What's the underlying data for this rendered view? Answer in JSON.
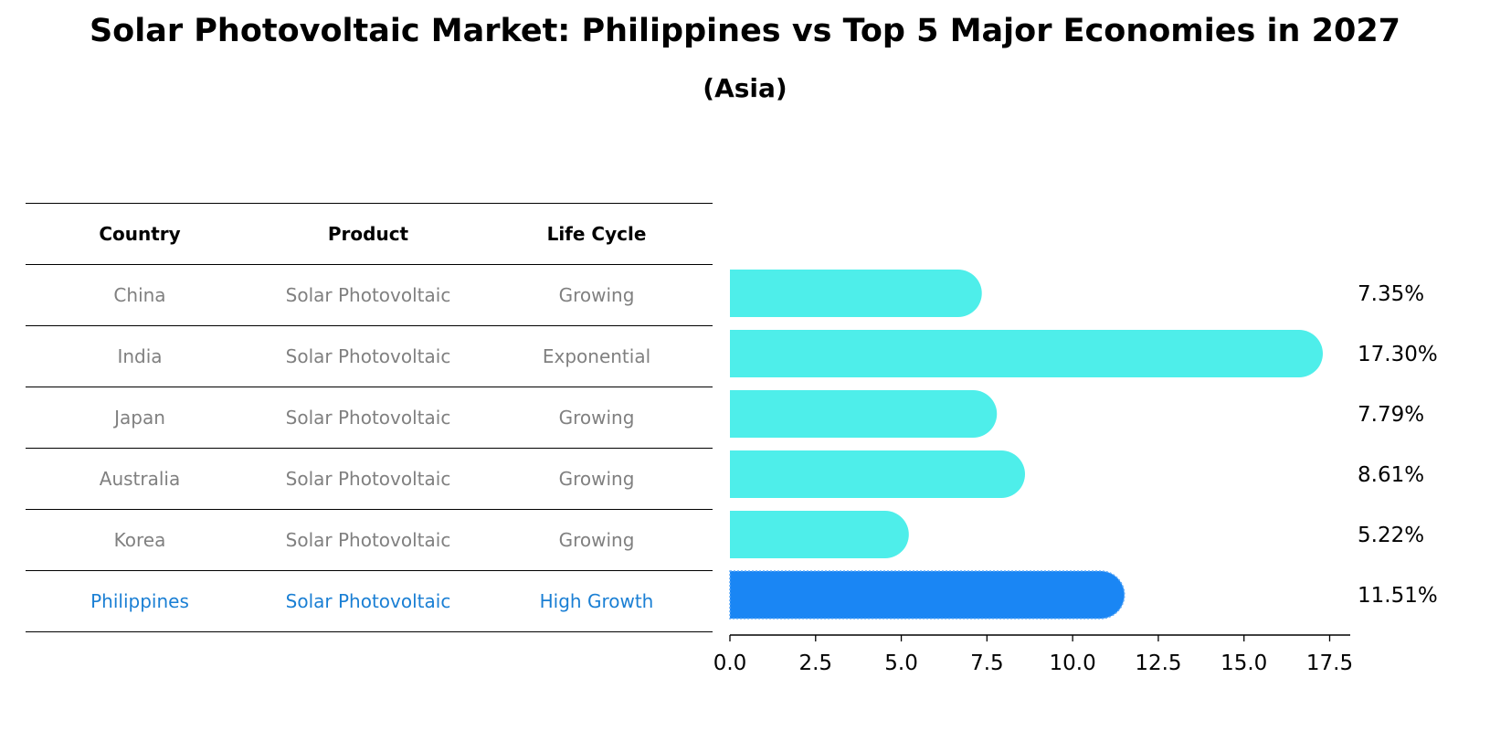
{
  "title": "Solar Photovoltaic Market: Philippines vs Top 5 Major Economies in 2027",
  "subtitle": "(Asia)",
  "table": {
    "headers": [
      "Country",
      "Product",
      "Life Cycle"
    ],
    "rows": [
      {
        "country": "China",
        "product": "Solar Photovoltaic",
        "life_cycle": "Growing"
      },
      {
        "country": "India",
        "product": "Solar Photovoltaic",
        "life_cycle": "Exponential"
      },
      {
        "country": "Japan",
        "product": "Solar Photovoltaic",
        "life_cycle": "Growing"
      },
      {
        "country": "Australia",
        "product": "Solar Photovoltaic",
        "life_cycle": "Growing"
      },
      {
        "country": "Korea",
        "product": "Solar Photovoltaic",
        "life_cycle": "Growing"
      },
      {
        "country": "Philippines",
        "product": "Solar Photovoltaic",
        "life_cycle": "High Growth"
      }
    ]
  },
  "colors": {
    "bar": "#4eeeea",
    "highlight_bar": "#1a86f4",
    "highlight_text": "#1a7fd4",
    "muted_text": "#808080"
  },
  "chart_data": {
    "type": "bar",
    "orientation": "horizontal",
    "categories": [
      "China",
      "India",
      "Japan",
      "Australia",
      "Korea",
      "Philippines"
    ],
    "values": [
      7.35,
      17.3,
      7.79,
      8.61,
      5.22,
      11.51
    ],
    "value_labels": [
      "7.35%",
      "17.30%",
      "7.79%",
      "8.61%",
      "5.22%",
      "11.51%"
    ],
    "highlight": "Philippines",
    "xlim": [
      0,
      18.1
    ],
    "xticks": [
      0.0,
      2.5,
      5.0,
      7.5,
      10.0,
      12.5,
      15.0,
      17.5
    ],
    "xtick_labels": [
      "0.0",
      "2.5",
      "5.0",
      "7.5",
      "10.0",
      "12.5",
      "15.0",
      "17.5"
    ],
    "grid": false,
    "xlabel": "",
    "ylabel": ""
  }
}
